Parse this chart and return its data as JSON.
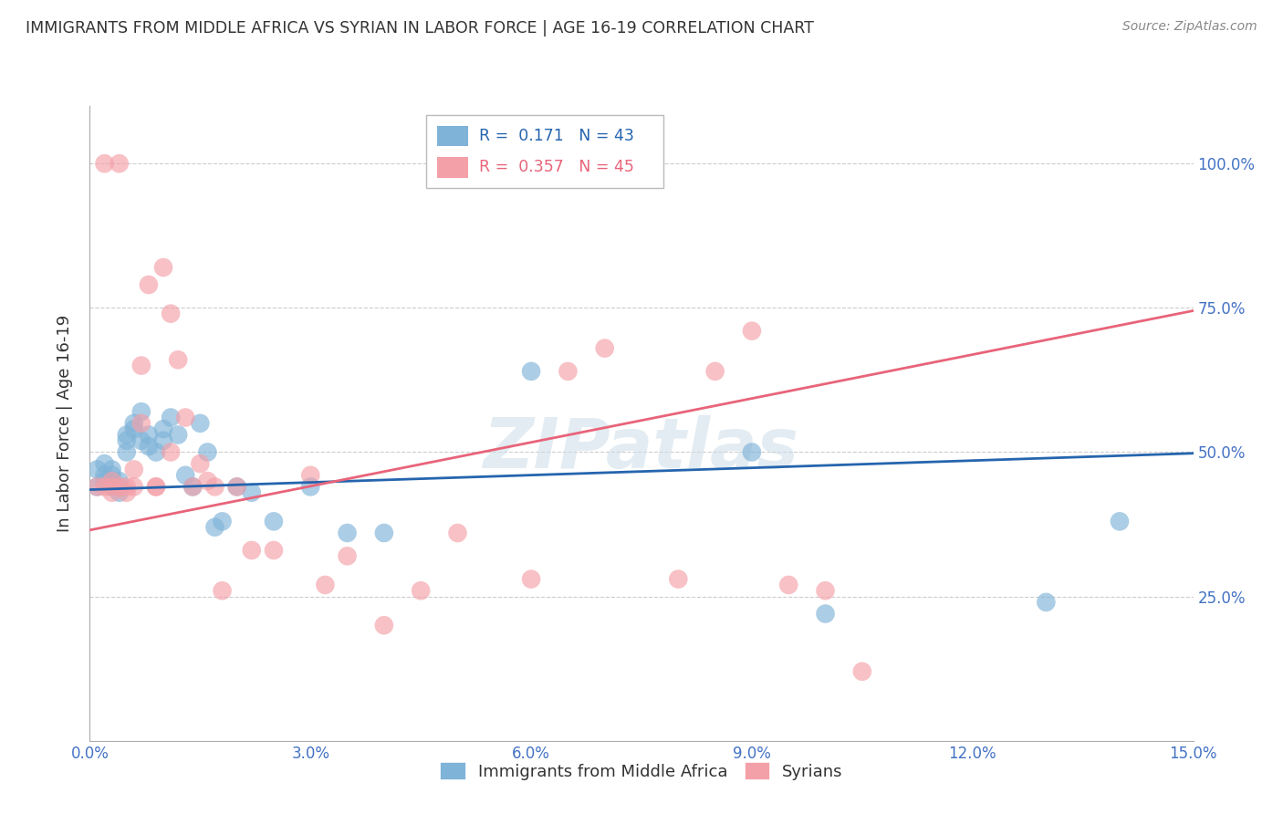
{
  "title": "IMMIGRANTS FROM MIDDLE AFRICA VS SYRIAN IN LABOR FORCE | AGE 16-19 CORRELATION CHART",
  "source": "Source: ZipAtlas.com",
  "ylabel": "In Labor Force | Age 16-19",
  "xlim": [
    0.0,
    0.15
  ],
  "ylim": [
    0.0,
    1.1
  ],
  "xticks": [
    0.0,
    0.03,
    0.06,
    0.09,
    0.12,
    0.15
  ],
  "xticklabels": [
    "0.0%",
    "3.0%",
    "6.0%",
    "9.0%",
    "12.0%",
    "15.0%"
  ],
  "yticks": [
    0.25,
    0.5,
    0.75,
    1.0
  ],
  "yticklabels": [
    "25.0%",
    "50.0%",
    "75.0%",
    "100.0%"
  ],
  "blue_color": "#7fb3d8",
  "pink_color": "#f4a0a8",
  "blue_line_color": "#2565ae",
  "pink_line_color": "#e8647a",
  "blue_label": "Immigrants from Middle Africa",
  "pink_label": "Syrians",
  "watermark": "ZIPatlas",
  "blue_scatter_x": [
    0.001,
    0.001,
    0.002,
    0.002,
    0.002,
    0.003,
    0.003,
    0.003,
    0.003,
    0.004,
    0.004,
    0.004,
    0.005,
    0.005,
    0.005,
    0.006,
    0.006,
    0.007,
    0.007,
    0.008,
    0.008,
    0.009,
    0.01,
    0.01,
    0.011,
    0.012,
    0.013,
    0.014,
    0.015,
    0.016,
    0.017,
    0.018,
    0.02,
    0.022,
    0.025,
    0.03,
    0.035,
    0.04,
    0.06,
    0.09,
    0.1,
    0.13,
    0.14
  ],
  "blue_scatter_y": [
    0.44,
    0.47,
    0.45,
    0.46,
    0.48,
    0.44,
    0.45,
    0.46,
    0.47,
    0.43,
    0.44,
    0.45,
    0.52,
    0.53,
    0.5,
    0.54,
    0.55,
    0.52,
    0.57,
    0.51,
    0.53,
    0.5,
    0.54,
    0.52,
    0.56,
    0.53,
    0.46,
    0.44,
    0.55,
    0.5,
    0.37,
    0.38,
    0.44,
    0.43,
    0.38,
    0.44,
    0.36,
    0.36,
    0.64,
    0.5,
    0.22,
    0.24,
    0.38
  ],
  "pink_scatter_x": [
    0.001,
    0.002,
    0.002,
    0.003,
    0.003,
    0.003,
    0.004,
    0.004,
    0.005,
    0.005,
    0.006,
    0.006,
    0.007,
    0.007,
    0.008,
    0.009,
    0.009,
    0.01,
    0.011,
    0.011,
    0.012,
    0.013,
    0.014,
    0.015,
    0.016,
    0.017,
    0.018,
    0.02,
    0.022,
    0.025,
    0.03,
    0.032,
    0.035,
    0.04,
    0.045,
    0.05,
    0.06,
    0.065,
    0.07,
    0.08,
    0.085,
    0.09,
    0.095,
    0.1,
    0.105
  ],
  "pink_scatter_y": [
    0.44,
    0.44,
    1.0,
    0.44,
    0.45,
    0.43,
    0.44,
    1.0,
    0.44,
    0.43,
    0.47,
    0.44,
    0.65,
    0.55,
    0.79,
    0.44,
    0.44,
    0.82,
    0.74,
    0.5,
    0.66,
    0.56,
    0.44,
    0.48,
    0.45,
    0.44,
    0.26,
    0.44,
    0.33,
    0.33,
    0.46,
    0.27,
    0.32,
    0.2,
    0.26,
    0.36,
    0.28,
    0.64,
    0.68,
    0.28,
    0.64,
    0.71,
    0.27,
    0.26,
    0.12
  ],
  "blue_trend_x": [
    0.0,
    0.15
  ],
  "blue_trend_y": [
    0.435,
    0.498
  ],
  "pink_trend_x": [
    0.0,
    0.15
  ],
  "pink_trend_y": [
    0.365,
    0.745
  ],
  "grid_color": "#cccccc",
  "axis_color": "#aaaaaa",
  "tick_label_color": "#4472c4",
  "title_color": "#333333",
  "background_color": "#ffffff"
}
